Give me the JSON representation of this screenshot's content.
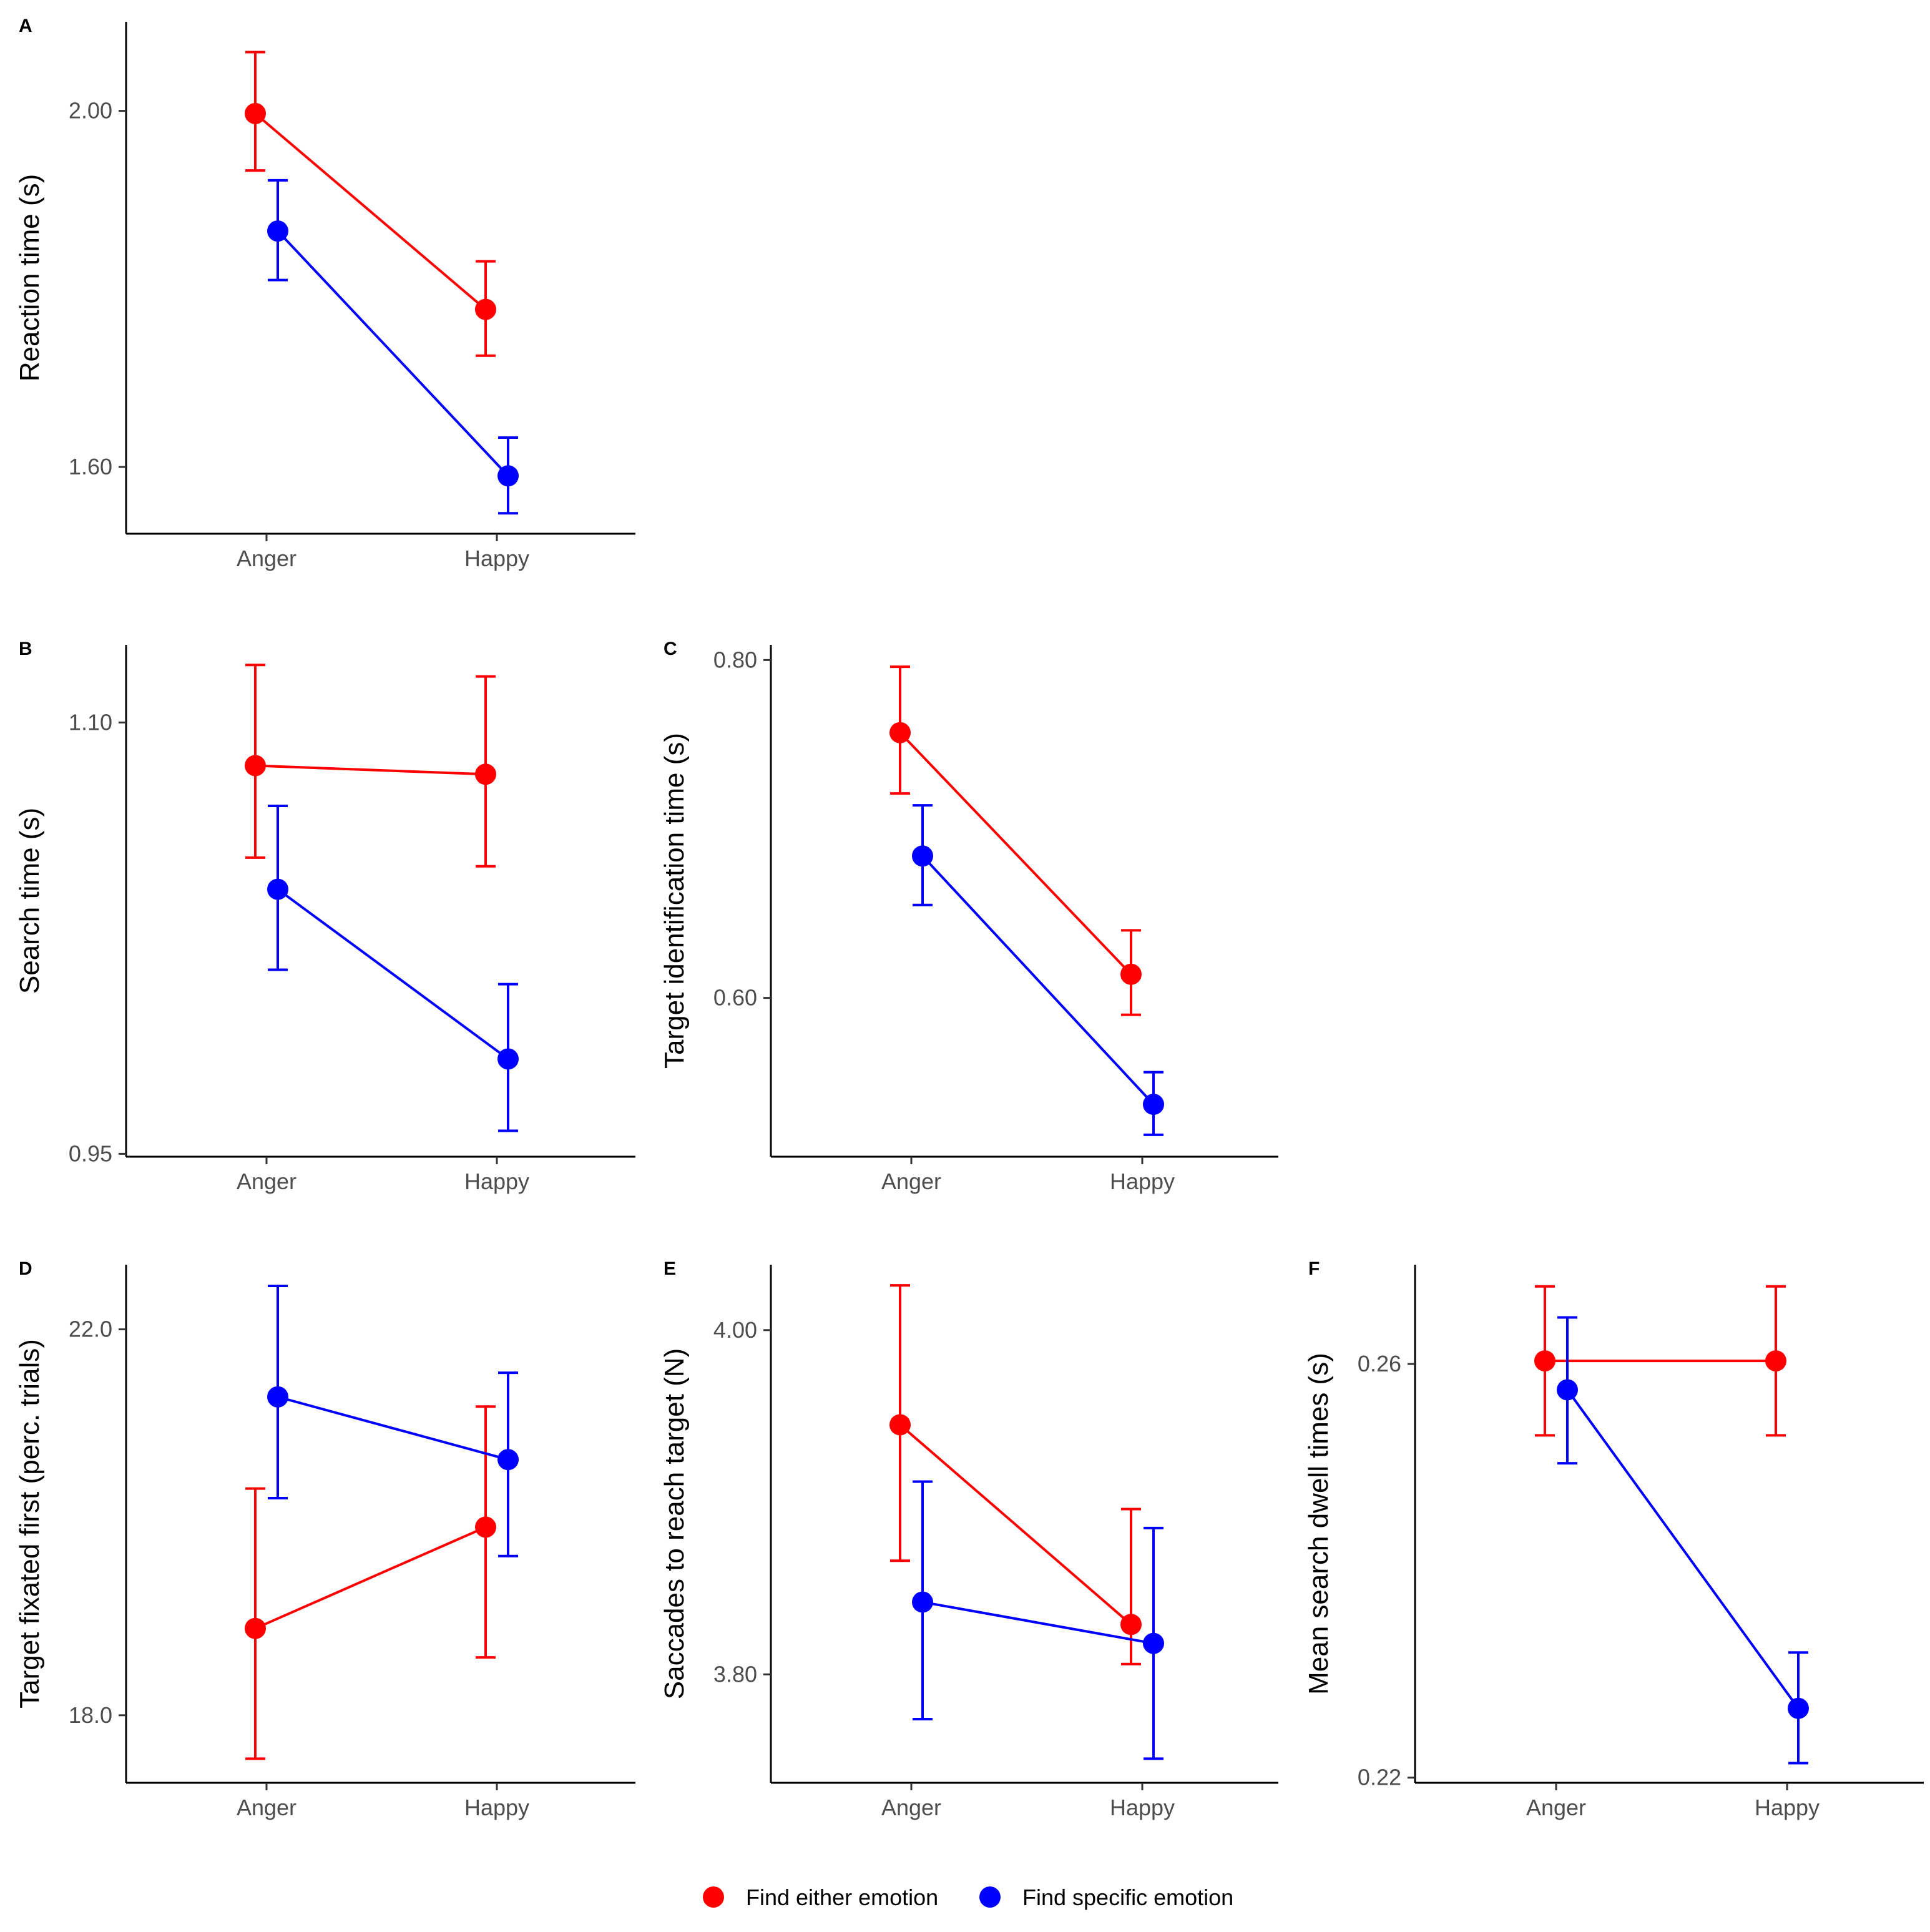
{
  "legend": {
    "items": [
      {
        "label": "Find either emotion",
        "color": "#ff0000"
      },
      {
        "label": "Find specific emotion",
        "color": "#0000ff"
      }
    ]
  },
  "chart_data": [
    {
      "panel": "A",
      "type": "line",
      "categories": [
        "Anger",
        "Happy"
      ],
      "ylabel": "Reaction time (s)",
      "ylim": [
        1.525,
        2.1
      ],
      "yticks": [
        2.0,
        1.6
      ],
      "ytick_labels": [
        "2.00",
        "1.60"
      ],
      "series": [
        {
          "name": "Find either emotion",
          "color": "#ff0000",
          "values": [
            1.997,
            1.777
          ],
          "lower": [
            1.933,
            1.725
          ],
          "upper": [
            2.066,
            1.831
          ]
        },
        {
          "name": "Find specific emotion",
          "color": "#0000ff",
          "values": [
            1.865,
            1.59
          ],
          "lower": [
            1.81,
            1.548
          ],
          "upper": [
            1.922,
            1.633
          ]
        }
      ]
    },
    {
      "panel": "B",
      "type": "line",
      "categories": [
        "Anger",
        "Happy"
      ],
      "ylabel": "Search time (s)",
      "ylim": [
        0.949,
        1.127
      ],
      "yticks": [
        1.1,
        0.95
      ],
      "ytick_labels": [
        "1.10",
        "0.95"
      ],
      "series": [
        {
          "name": "Find either emotion",
          "color": "#ff0000",
          "values": [
            1.085,
            1.082
          ],
          "lower": [
            1.053,
            1.05
          ],
          "upper": [
            1.12,
            1.116
          ]
        },
        {
          "name": "Find specific emotion",
          "color": "#0000ff",
          "values": [
            1.042,
            0.983
          ],
          "lower": [
            1.014,
            0.958
          ],
          "upper": [
            1.071,
            1.009
          ]
        }
      ]
    },
    {
      "panel": "C",
      "type": "line",
      "categories": [
        "Anger",
        "Happy"
      ],
      "ylabel": "Target identification time (s)",
      "ylim": [
        0.506,
        0.809
      ],
      "yticks": [
        0.8,
        0.6
      ],
      "ytick_labels": [
        "0.80",
        "0.60"
      ],
      "series": [
        {
          "name": "Find either emotion",
          "color": "#ff0000",
          "values": [
            0.757,
            0.614
          ],
          "lower": [
            0.721,
            0.59
          ],
          "upper": [
            0.796,
            0.64
          ]
        },
        {
          "name": "Find specific emotion",
          "color": "#0000ff",
          "values": [
            0.684,
            0.537
          ],
          "lower": [
            0.655,
            0.519
          ],
          "upper": [
            0.714,
            0.556
          ]
        }
      ]
    },
    {
      "panel": "D",
      "type": "line",
      "categories": [
        "Anger",
        "Happy"
      ],
      "ylabel": "Target fixated first (perc. trials)",
      "ylim": [
        17.3,
        22.67
      ],
      "yticks": [
        22.0,
        18.0
      ],
      "ytick_labels": [
        "22.0",
        "18.0"
      ],
      "series": [
        {
          "name": "Find either emotion",
          "color": "#ff0000",
          "values": [
            18.9,
            19.95
          ],
          "lower": [
            17.55,
            18.6
          ],
          "upper": [
            20.35,
            21.2
          ]
        },
        {
          "name": "Find specific emotion",
          "color": "#0000ff",
          "values": [
            21.3,
            20.65
          ],
          "lower": [
            20.25,
            19.65
          ],
          "upper": [
            22.45,
            21.55
          ]
        }
      ]
    },
    {
      "panel": "E",
      "type": "line",
      "categories": [
        "Anger",
        "Happy"
      ],
      "ylabel": "Saccades to reach target (N)",
      "ylim": [
        3.737,
        4.038
      ],
      "yticks": [
        4.0,
        3.8
      ],
      "ytick_labels": [
        "4.00",
        "3.80"
      ],
      "series": [
        {
          "name": "Find either emotion",
          "color": "#ff0000",
          "values": [
            3.945,
            3.829
          ],
          "lower": [
            3.866,
            3.806
          ],
          "upper": [
            4.026,
            3.896
          ]
        },
        {
          "name": "Find specific emotion",
          "color": "#0000ff",
          "values": [
            3.842,
            3.818
          ],
          "lower": [
            3.774,
            3.751
          ],
          "upper": [
            3.912,
            3.885
          ]
        }
      ]
    },
    {
      "panel": "F",
      "type": "line",
      "categories": [
        "Anger",
        "Happy"
      ],
      "ylabel": "Mean search dwell times (s)",
      "ylim": [
        0.2195,
        0.2696
      ],
      "yticks": [
        0.26,
        0.22
      ],
      "ytick_labels": [
        "0.26",
        "0.22"
      ],
      "series": [
        {
          "name": "Find either emotion",
          "color": "#ff0000",
          "values": [
            0.2603,
            0.2603
          ],
          "lower": [
            0.2531,
            0.2531
          ],
          "upper": [
            0.2675,
            0.2675
          ]
        },
        {
          "name": "Find specific emotion",
          "color": "#0000ff",
          "values": [
            0.2575,
            0.2267
          ],
          "lower": [
            0.2504,
            0.2214
          ],
          "upper": [
            0.2645,
            0.2321
          ]
        }
      ]
    }
  ]
}
